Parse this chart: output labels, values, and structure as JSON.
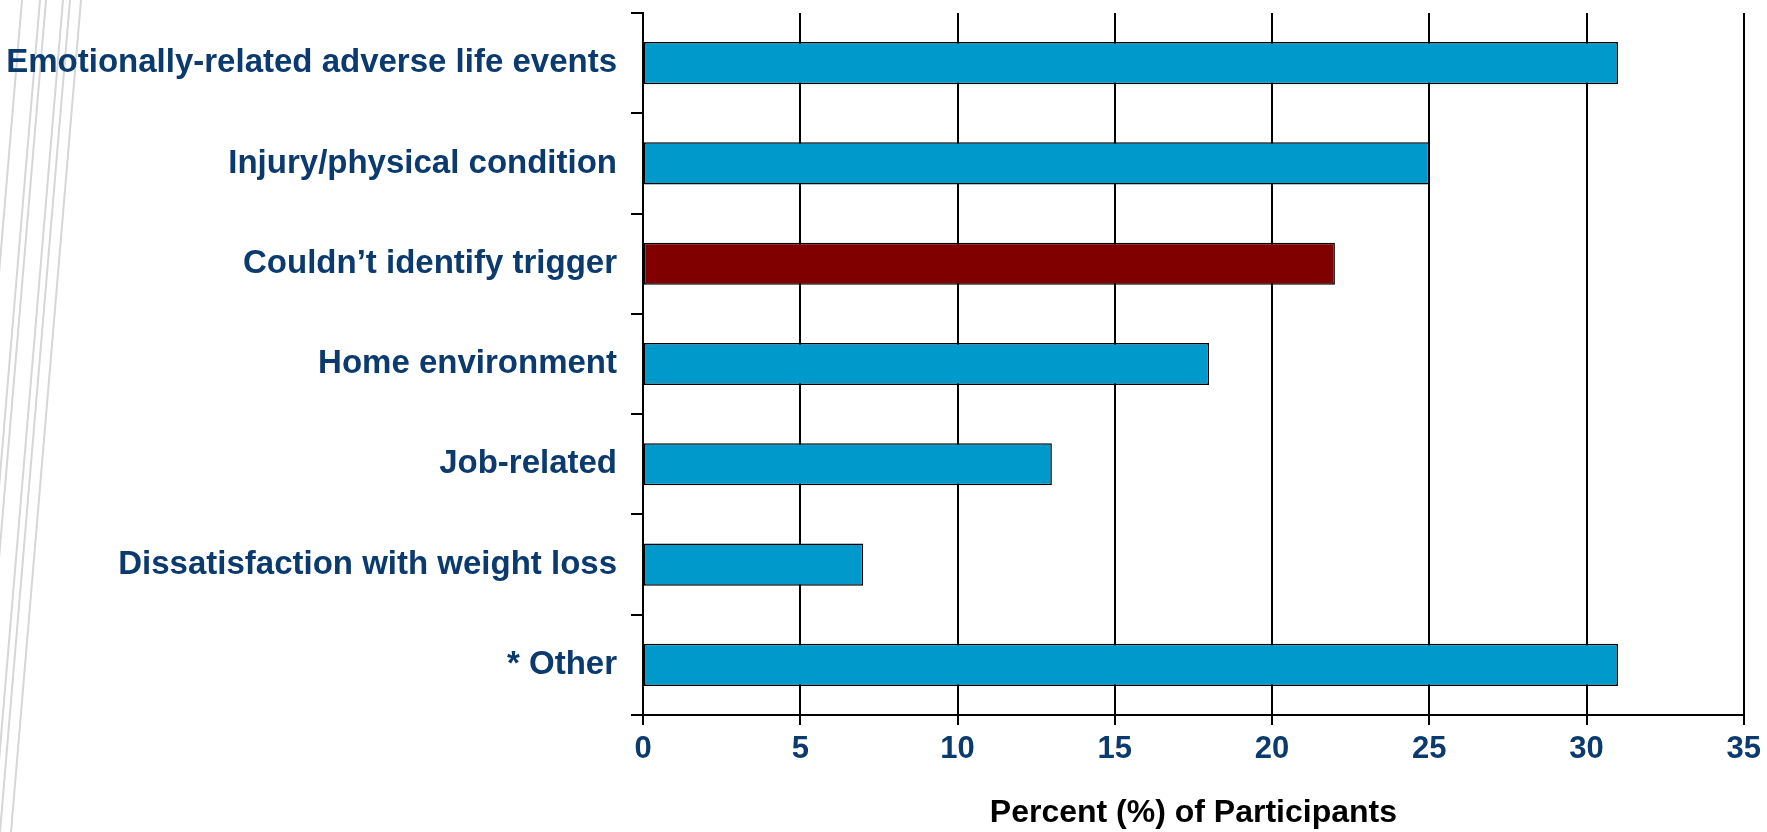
{
  "chart_data": {
    "type": "bar",
    "orientation": "horizontal",
    "categories": [
      "Emotionally-related adverse life events",
      "Injury/physical condition",
      "Couldn’t identify trigger",
      "Home environment",
      "Job-related",
      "Dissatisfaction with weight loss",
      "* Other"
    ],
    "values": [
      31,
      25,
      22,
      18,
      13,
      7,
      31
    ],
    "colors": [
      "#0099cc",
      "#0099cc",
      "#800000",
      "#0099cc",
      "#0099cc",
      "#0099cc",
      "#0099cc"
    ],
    "xlabel": "Percent (%) of Participants",
    "xlim": [
      0,
      35
    ],
    "xticks": [
      0,
      5,
      10,
      15,
      20,
      25,
      30,
      35
    ],
    "grid": "x"
  }
}
